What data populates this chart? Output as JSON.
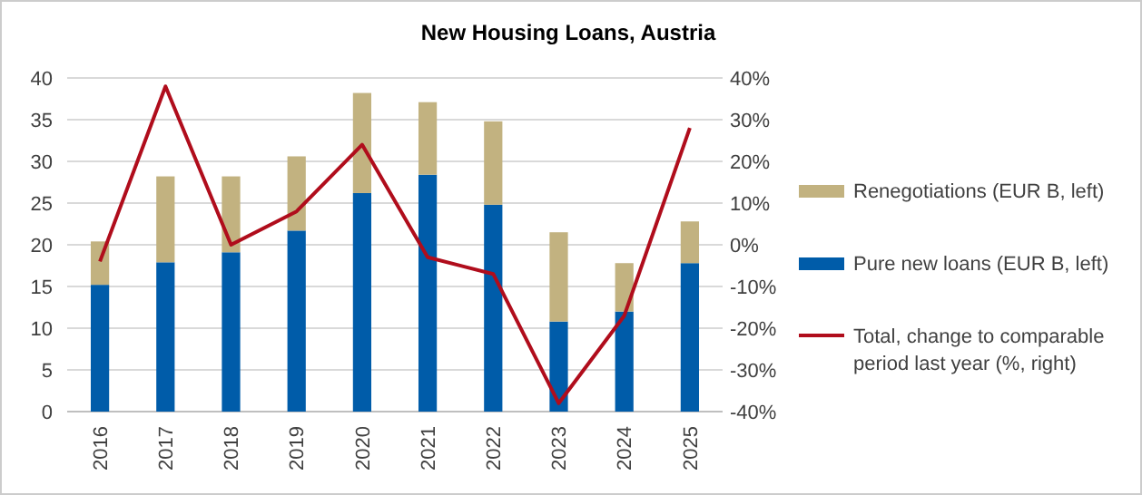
{
  "chart_data": {
    "type": "bar",
    "title": "New Housing Loans, Austria",
    "stacked": true,
    "categories": [
      "2016",
      "2017",
      "2018",
      "2019",
      "2020",
      "2021",
      "2022",
      "2023",
      "2024",
      "2025"
    ],
    "series": [
      {
        "name": "Pure new loans (EUR B, left)",
        "color": "#005ca9",
        "values": [
          15.2,
          17.9,
          19.1,
          21.7,
          26.2,
          28.4,
          24.8,
          10.8,
          12.0,
          17.8
        ]
      },
      {
        "name": "Renegotiations (EUR B, left)",
        "color": "#c2b280",
        "values": [
          5.2,
          10.3,
          9.1,
          8.9,
          12.0,
          8.7,
          10.0,
          10.7,
          5.8,
          5.0
        ]
      },
      {
        "name": "Total, change to comparable period last year (%, right)",
        "type": "line",
        "axis": "y2",
        "color": "#b00d1c",
        "values": [
          -4,
          38,
          0,
          8,
          24,
          -3,
          -7,
          -38,
          -17,
          28
        ]
      }
    ],
    "ylim": [
      0,
      40
    ],
    "yticks": [
      0,
      5,
      10,
      15,
      20,
      25,
      30,
      35,
      40
    ],
    "y2lim": [
      -40,
      40
    ],
    "y2ticks": [
      {
        "value": -40,
        "label": "-40%"
      },
      {
        "value": -30,
        "label": "-30%"
      },
      {
        "value": -20,
        "label": "-20%"
      },
      {
        "value": -10,
        "label": "-10%"
      },
      {
        "value": 0,
        "label": "0%"
      },
      {
        "value": 10,
        "label": "10%"
      },
      {
        "value": 20,
        "label": "20%"
      },
      {
        "value": 30,
        "label": "30%"
      },
      {
        "value": 40,
        "label": "40%"
      }
    ],
    "grid": "y",
    "legend": "right"
  }
}
